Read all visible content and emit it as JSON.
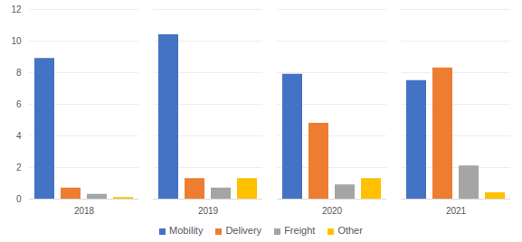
{
  "chart_data": {
    "type": "bar",
    "categories": [
      "2018",
      "2019",
      "2020",
      "2021"
    ],
    "series": [
      {
        "name": "Mobility",
        "color": "#4472c4",
        "values": [
          8.9,
          10.4,
          7.9,
          7.5
        ]
      },
      {
        "name": "Delivery",
        "color": "#ed7d31",
        "values": [
          0.7,
          1.3,
          4.8,
          8.3
        ]
      },
      {
        "name": "Freight",
        "color": "#a5a5a5",
        "values": [
          0.3,
          0.7,
          0.9,
          2.1
        ]
      },
      {
        "name": "Other",
        "color": "#ffc000",
        "values": [
          0.1,
          1.3,
          1.3,
          0.4
        ]
      }
    ],
    "ylim": [
      0,
      12
    ],
    "yticks": [
      0,
      2,
      4,
      6,
      8,
      10,
      12
    ],
    "grid": true,
    "legend": "bottom"
  }
}
